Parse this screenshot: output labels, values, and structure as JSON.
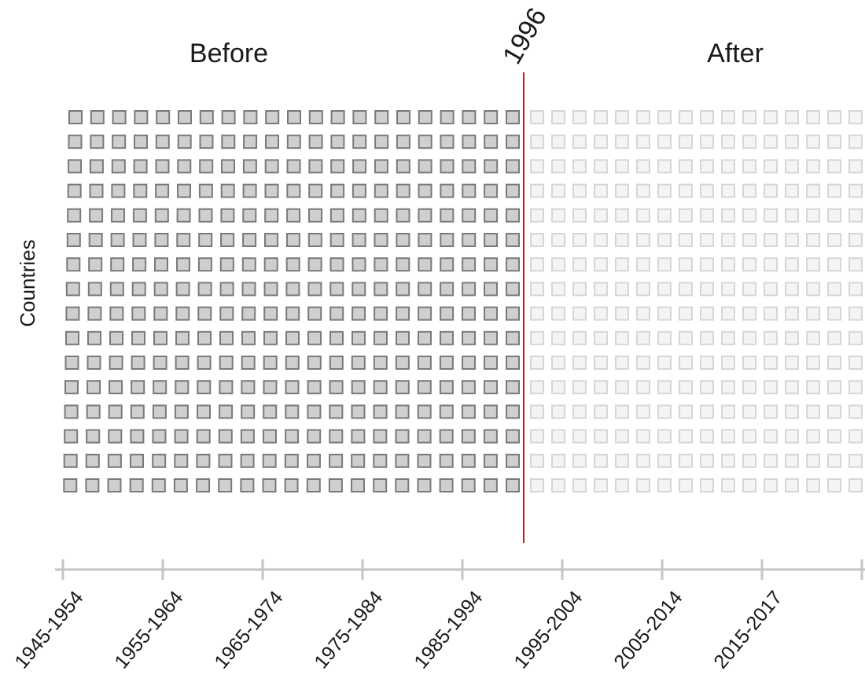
{
  "labels": {
    "before": "Before",
    "after": "After",
    "event_year": "1996",
    "y_axis": "Countries"
  },
  "timeline": {
    "ticks": [
      "1945-1954",
      "1955-1964",
      "1965-1974",
      "1975-1984",
      "1985-1994",
      "1995-2004",
      "2005-2014",
      "2015-2017"
    ]
  },
  "grid": {
    "rows": 16,
    "filled_per_row": 21,
    "empty_per_row": 16
  },
  "colors": {
    "filled_square_fill": "#cfcfcf",
    "filled_square_stroke": "#7a7a7a",
    "empty_square_fill": "#f4f4f4",
    "empty_square_stroke": "#d6d6d6",
    "event_line": "#b32424",
    "axis_line": "#c4c4c4",
    "text": "#1a1a1a"
  }
}
